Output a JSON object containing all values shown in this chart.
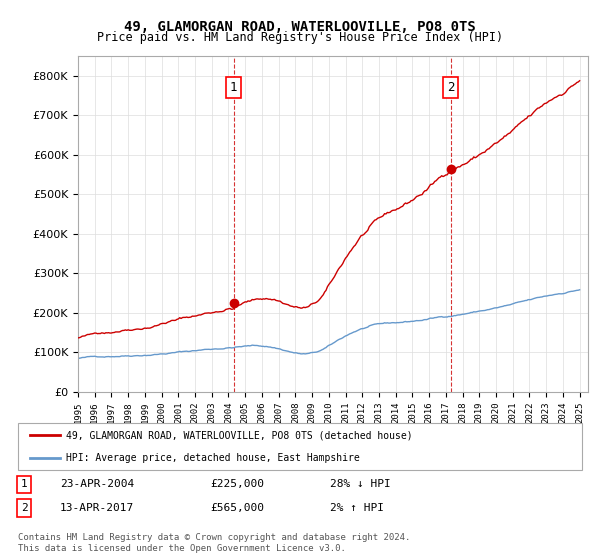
{
  "title": "49, GLAMORGAN ROAD, WATERLOOVILLE, PO8 0TS",
  "subtitle": "Price paid vs. HM Land Registry's House Price Index (HPI)",
  "legend_line1": "49, GLAMORGAN ROAD, WATERLOOVILLE, PO8 0TS (detached house)",
  "legend_line2": "HPI: Average price, detached house, East Hampshire",
  "annotation1_label": "1",
  "annotation1_date": "23-APR-2004",
  "annotation1_price": "£225,000",
  "annotation1_hpi": "28% ↓ HPI",
  "annotation2_label": "2",
  "annotation2_date": "13-APR-2017",
  "annotation2_price": "£565,000",
  "annotation2_hpi": "2% ↑ HPI",
  "footer": "Contains HM Land Registry data © Crown copyright and database right 2024.\nThis data is licensed under the Open Government Licence v3.0.",
  "sale1_year": 2004.31,
  "sale1_price": 225000,
  "sale2_year": 2017.28,
  "sale2_price": 565000,
  "hpi_color": "#6699cc",
  "price_color": "#cc0000",
  "vline_color": "#cc0000",
  "ylim_min": 0,
  "ylim_max": 850000,
  "xlim_min": 1995,
  "xlim_max": 2025.5
}
